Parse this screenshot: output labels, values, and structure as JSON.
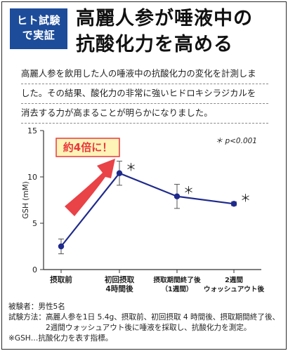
{
  "badge": {
    "line1": "ヒト試験",
    "line2": "で実証"
  },
  "headline": {
    "line1": "高麗人参が唾液中の",
    "line2": "抗酸化力を高める"
  },
  "intro": [
    "高麗人参を飲用した人の唾液中の抗酸化力の変化を計測しま",
    "した。その結果、酸化力の非常に強いヒドロキシラジカルを",
    "消去する力が高まることが明らかになりました。"
  ],
  "chart_data": {
    "type": "line",
    "categories": [
      [
        "摂取前"
      ],
      [
        "初回摂取",
        "4時間後"
      ],
      [
        "摂取期間終了後",
        "（1週間）"
      ],
      [
        "2週間",
        "ウォッシュアウト後"
      ]
    ],
    "series": [
      {
        "values": [
          2.5,
          10.4,
          7.9,
          7.1
        ],
        "error": [
          0.8,
          1.3,
          1.3,
          0.2
        ]
      }
    ],
    "significance": [
      false,
      true,
      true,
      true
    ],
    "significance_mark": "＊",
    "ylabel": "GSH (mM)",
    "ylim": [
      0,
      15
    ],
    "yticks": [
      0,
      5,
      10,
      15
    ],
    "legend_note": "＊ p<0.001",
    "callout": "約4倍に！",
    "colors": {
      "line": "#1f2a8c",
      "arrow": "#e8383d",
      "callout_border": "#e8383d",
      "callout_text": "#e8383d",
      "callout_bg": "#fff4b8",
      "badge": "#1d4c9a"
    }
  },
  "notes": [
    "被験者：男性5名",
    "試験方法：高麗人参を1日 5.4g、摂取前、初回摂取 4 時間後、摂取期間終了後、",
    "　　　　　2週間ウォッシュアウト後に唾液を採取し、抗酸化力を測定。",
    "※GSH…抗酸化力を表す指標。"
  ]
}
